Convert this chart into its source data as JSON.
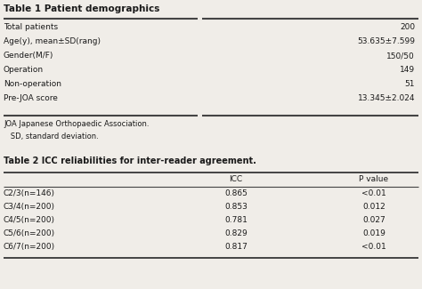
{
  "table1_title": "Table 1 Patient demographics",
  "table1_rows": [
    [
      "Total patients",
      "200"
    ],
    [
      "Age(y), mean±SD(rang)",
      "53.635±7.599"
    ],
    [
      "Gender(M/F)",
      "150/50"
    ],
    [
      "Operation",
      "149"
    ],
    [
      "Non-operation",
      "51"
    ],
    [
      "Pre-JOA score",
      "13.345±2.024"
    ]
  ],
  "footnotes": [
    "JOA Japanese Orthopaedic Association.",
    "   SD, standard deviation."
  ],
  "table2_title": "Table 2 ICC reliabilities for inter-reader agreement.",
  "table2_headers": [
    "",
    "ICC",
    "P value"
  ],
  "table2_rows": [
    [
      "C2/3(n=146)",
      "0.865",
      "<0.01"
    ],
    [
      "C3/4(n=200)",
      "0.853",
      "0.012"
    ],
    [
      "C4/5(n=200)",
      "0.781",
      "0.027"
    ],
    [
      "C5/6(n=200)",
      "0.829",
      "0.019"
    ],
    [
      "C6/7(n=200)",
      "0.817",
      "<0.01"
    ]
  ],
  "bg_color": "#f0ede8",
  "text_color": "#1a1a1a",
  "line_color": "#444444",
  "font_size": 6.5,
  "title_font_size": 7.5
}
